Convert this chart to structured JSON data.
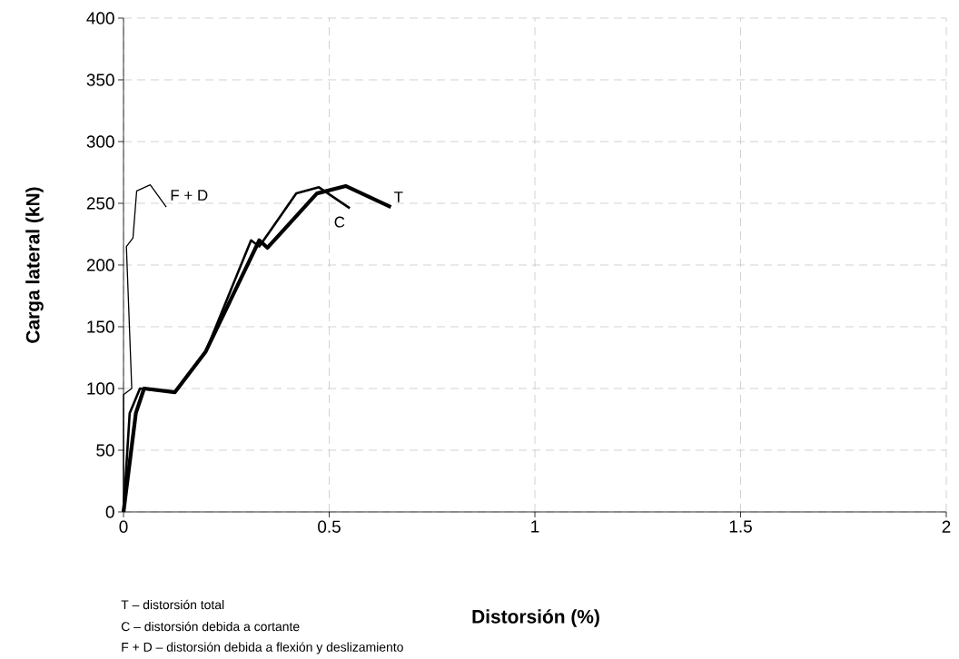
{
  "chart_data": {
    "type": "line",
    "xlabel": "Distorsión (%)",
    "ylabel": "Carga lateral (kN)",
    "xlim": [
      0,
      2
    ],
    "xticks": [
      0,
      0.5,
      1,
      1.5,
      2
    ],
    "ylim": [
      0,
      400
    ],
    "yticks": [
      0,
      50,
      100,
      150,
      200,
      250,
      300,
      350,
      400
    ],
    "grid": true,
    "marker": "none",
    "line_style": "solid",
    "series": [
      {
        "name": "F + D",
        "color": "#000000",
        "x": [
          0,
          0,
          0.02,
          0.007,
          0.023,
          0.032,
          0.065,
          0.104
        ],
        "values": [
          0,
          95,
          100,
          215,
          222,
          260,
          265,
          247
        ]
      },
      {
        "name": "C",
        "color": "#000000",
        "x": [
          0,
          0.015,
          0.04,
          0.125,
          0.2,
          0.31,
          0.33,
          0.42,
          0.475,
          0.55
        ],
        "values": [
          0,
          80,
          100,
          97,
          130,
          220,
          215,
          258,
          263,
          246
        ]
      },
      {
        "name": "T",
        "color": "#000000",
        "x": [
          0,
          0.03,
          0.05,
          0.125,
          0.2,
          0.33,
          0.35,
          0.47,
          0.54,
          0.65
        ],
        "values": [
          0,
          80,
          100,
          97,
          130,
          220,
          214,
          258,
          264,
          247
        ]
      }
    ],
    "annotations": [
      "T – distorsión total",
      "C – distorsión debida a cortante",
      "F + D – distorsión debida a flexión y deslizamiento"
    ]
  }
}
